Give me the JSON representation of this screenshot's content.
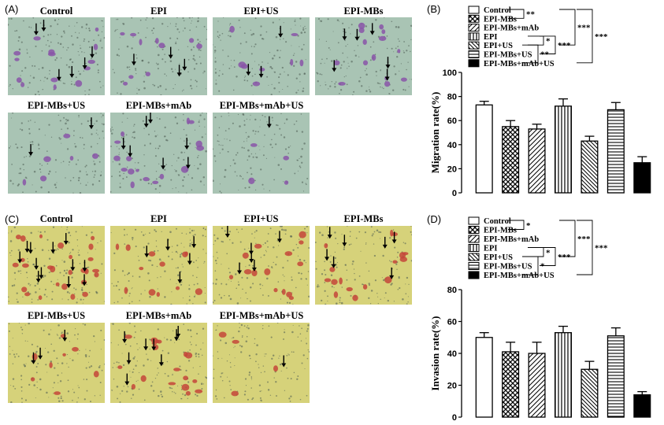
{
  "panels": {
    "A": "(A)",
    "B": "(B)",
    "C": "(C)",
    "D": "(D)"
  },
  "micrographs_top": {
    "labels": [
      "Control",
      "EPI",
      "EPI+US",
      "EPI-MBs",
      "EPI-MBs+US",
      "EPI-MBs+mAb",
      "EPI-MBs+mAb+US"
    ],
    "stain_color": "#8a55a8",
    "background_color": "#a9c4b4"
  },
  "micrographs_bottom": {
    "labels": [
      "Control",
      "EPI",
      "EPI+US",
      "EPI-MBs",
      "EPI-MBs+US",
      "EPI-MBs+mAb",
      "EPI-MBs+mAb+US"
    ],
    "stain_color": "#c4463a",
    "background_color": "#d6d27a"
  },
  "chart_data": [
    {
      "type": "bar",
      "panel": "B",
      "ylabel": "Migration rate(%)",
      "ylim": [
        0,
        100
      ],
      "yticks": [
        0,
        20,
        40,
        60,
        80,
        100
      ],
      "categories": [
        "Control",
        "EPI-MBs",
        "EPI-MBs+mAb",
        "EPI",
        "EPI+US",
        "EPI-MBs+US",
        "EPI-MBs+mAb+US"
      ],
      "values": [
        73,
        55,
        53,
        72,
        43,
        69,
        25
      ],
      "errors": [
        3,
        5,
        4,
        6,
        4,
        6,
        5
      ],
      "patterns": [
        "open",
        "crosshatch",
        "diag-right",
        "vertical",
        "diag-right-dense",
        "horizontal",
        "solid"
      ],
      "legend": [
        "Control",
        "EPI-MBs",
        "EPI-MBs+mAb",
        "EPI",
        "EPI+US",
        "EPI-MBs+US",
        "EPI-MBs+mAb+US"
      ],
      "significance": [
        "**",
        "*",
        "***",
        "***",
        "**",
        "***"
      ]
    },
    {
      "type": "bar",
      "panel": "D",
      "ylabel": "Invasion rate(%)",
      "ylim": [
        0,
        80
      ],
      "yticks": [
        0,
        20,
        40,
        60,
        80
      ],
      "categories": [
        "Control",
        "EPI-MBs",
        "EPI-MBs+mAb",
        "EPI",
        "EPI+US",
        "EPI-MBs+US",
        "EPI-MBs+mAb+US"
      ],
      "values": [
        50,
        41,
        40,
        53,
        30,
        51,
        14
      ],
      "errors": [
        3,
        6,
        7,
        4,
        5,
        5,
        2
      ],
      "patterns": [
        "open",
        "crosshatch",
        "diag-right",
        "vertical",
        "diag-right-dense",
        "horizontal",
        "solid"
      ],
      "legend": [
        "Control",
        "EPI-MBs",
        "EPI-MBs+mAb",
        "EPI",
        "EPI+US",
        "EPI-MBs+US",
        "EPI-MBs+mAb+US"
      ],
      "significance": [
        "*",
        "*",
        "***",
        "***",
        "*",
        "***"
      ]
    }
  ]
}
